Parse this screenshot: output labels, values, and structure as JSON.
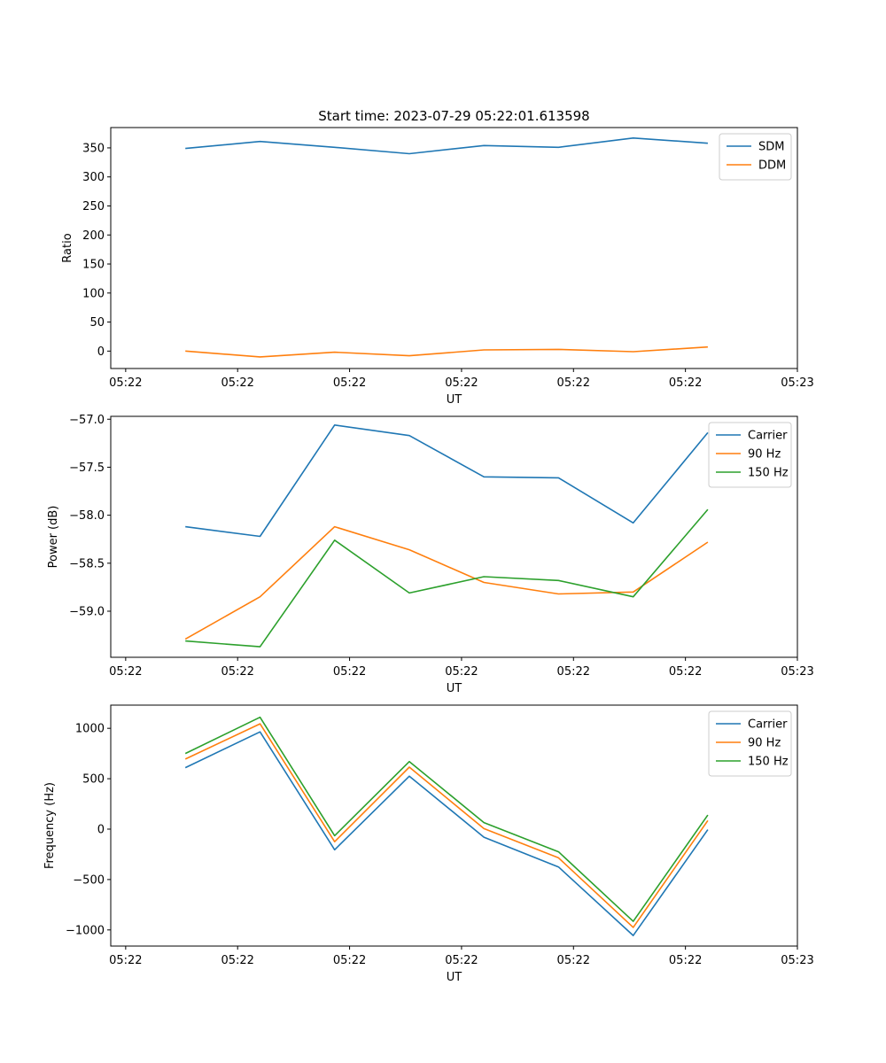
{
  "title": "Start time: 2023-07-29 05:22:01.613598",
  "colors": {
    "c0": "#1f77b4",
    "c1": "#ff7f0e",
    "c2": "#2ca02c"
  },
  "chart_data": [
    {
      "type": "line",
      "xlabel": "UT",
      "ylabel": "Ratio",
      "xlim": [
        0,
        9.2
      ],
      "ylim": [
        -30,
        385
      ],
      "x": [
        1,
        2,
        3,
        4,
        5,
        6,
        7,
        8
      ],
      "x_ticks": [
        0.2,
        1.7,
        3.2,
        4.7,
        6.2,
        7.7,
        9.2
      ],
      "x_tick_labels": [
        "05:22",
        "05:22",
        "05:22",
        "05:22",
        "05:22",
        "05:22",
        "05:23"
      ],
      "y_ticks": [
        0,
        50,
        100,
        150,
        200,
        250,
        300,
        350
      ],
      "y_tick_labels": [
        "0",
        "50",
        "100",
        "150",
        "200",
        "250",
        "300",
        "350"
      ],
      "legend": "top-right",
      "series": [
        {
          "name": "SDM",
          "values": [
            349,
            361,
            351,
            340,
            354,
            351,
            367,
            358
          ]
        },
        {
          "name": "DDM",
          "values": [
            0,
            -10,
            -2,
            -8,
            2,
            3,
            -1,
            7
          ]
        }
      ]
    },
    {
      "type": "line",
      "xlabel": "UT",
      "ylabel": "Power (dB)",
      "xlim": [
        0,
        9.2
      ],
      "ylim": [
        -59.48,
        -56.97
      ],
      "x": [
        1,
        2,
        3,
        4,
        5,
        6,
        7,
        8
      ],
      "x_ticks": [
        0.2,
        1.7,
        3.2,
        4.7,
        6.2,
        7.7,
        9.2
      ],
      "x_tick_labels": [
        "05:22",
        "05:22",
        "05:22",
        "05:22",
        "05:22",
        "05:22",
        "05:23"
      ],
      "y_ticks": [
        -59.0,
        -58.5,
        -58.0,
        -57.5,
        -57.0
      ],
      "y_tick_labels": [
        "−59.0",
        "−58.5",
        "−58.0",
        "−57.5",
        "−57.0"
      ],
      "legend": "top-right",
      "series": [
        {
          "name": "Carrier",
          "values": [
            -58.12,
            -58.22,
            -57.06,
            -57.17,
            -57.6,
            -57.61,
            -58.08,
            -57.14
          ]
        },
        {
          "name": "90 Hz",
          "values": [
            -59.29,
            -58.85,
            -58.12,
            -58.36,
            -58.7,
            -58.82,
            -58.8,
            -58.28
          ]
        },
        {
          "name": "150 Hz",
          "values": [
            -59.31,
            -59.37,
            -58.26,
            -58.81,
            -58.64,
            -58.68,
            -58.85,
            -57.94
          ]
        }
      ]
    },
    {
      "type": "line",
      "xlabel": "UT",
      "ylabel": "Frequency (Hz)",
      "xlim": [
        0,
        9.2
      ],
      "ylim": [
        -1160,
        1230
      ],
      "x": [
        1,
        2,
        3,
        4,
        5,
        6,
        7,
        8
      ],
      "x_ticks": [
        0.2,
        1.7,
        3.2,
        4.7,
        6.2,
        7.7,
        9.2
      ],
      "x_tick_labels": [
        "05:22",
        "05:22",
        "05:22",
        "05:22",
        "05:22",
        "05:22",
        "05:23"
      ],
      "y_ticks": [
        -1000,
        -500,
        0,
        500,
        1000
      ],
      "y_tick_labels": [
        "−1000",
        "−500",
        "0",
        "500",
        "1000"
      ],
      "legend": "top-right",
      "series": [
        {
          "name": "Carrier",
          "values": [
            610,
            965,
            -205,
            525,
            -80,
            -375,
            -1055,
            -5
          ]
        },
        {
          "name": "90 Hz",
          "values": [
            695,
            1045,
            -125,
            615,
            5,
            -285,
            -975,
            85
          ]
        },
        {
          "name": "150 Hz",
          "values": [
            750,
            1110,
            -65,
            670,
            65,
            -225,
            -915,
            140
          ]
        }
      ]
    }
  ]
}
